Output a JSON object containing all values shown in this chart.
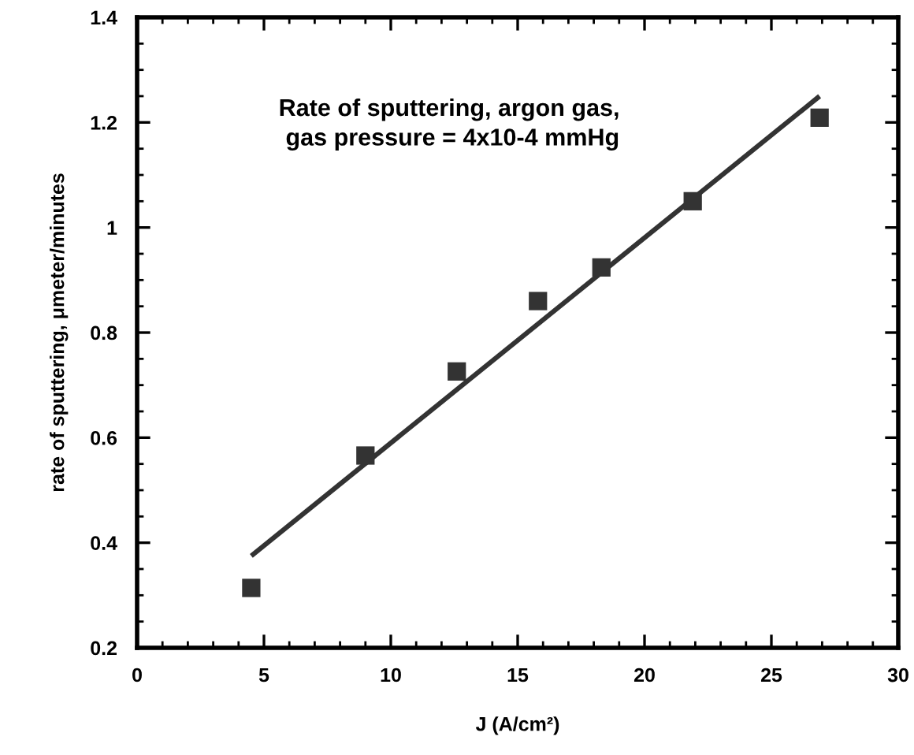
{
  "chart_data": {
    "type": "scatter",
    "xlabel": "J (A/cm²)",
    "ylabel": "rate of sputtering, μmeter/minutes",
    "annotations": [
      "Rate of sputtering, argon gas,\n gas pressure = 4x10-4 mmHg"
    ],
    "xlim": [
      0,
      30
    ],
    "xticks": [
      0,
      5,
      10,
      15,
      20,
      25,
      30
    ],
    "ylim": [
      0.2,
      1.4
    ],
    "yticks": [
      0.2,
      0.4,
      0.6,
      {
        "value": 0.8,
        "label": "0.8"
      },
      1,
      1.2,
      1.4
    ],
    "marker": "square",
    "grid": false,
    "legend": false,
    "series": [
      {
        "color": "#333333",
        "x": [
          4.5,
          9.0,
          12.6,
          15.8,
          18.3,
          21.9,
          26.9
        ],
        "values": [
          0.314,
          0.566,
          0.726,
          0.86,
          0.924,
          1.05,
          1.209
        ]
      },
      {
        "type": "line",
        "color": "#333333",
        "x": [
          4.5,
          26.9
        ],
        "values": [
          0.375,
          1.25
        ],
        "line_style": "solid",
        "marker": "none"
      }
    ]
  }
}
